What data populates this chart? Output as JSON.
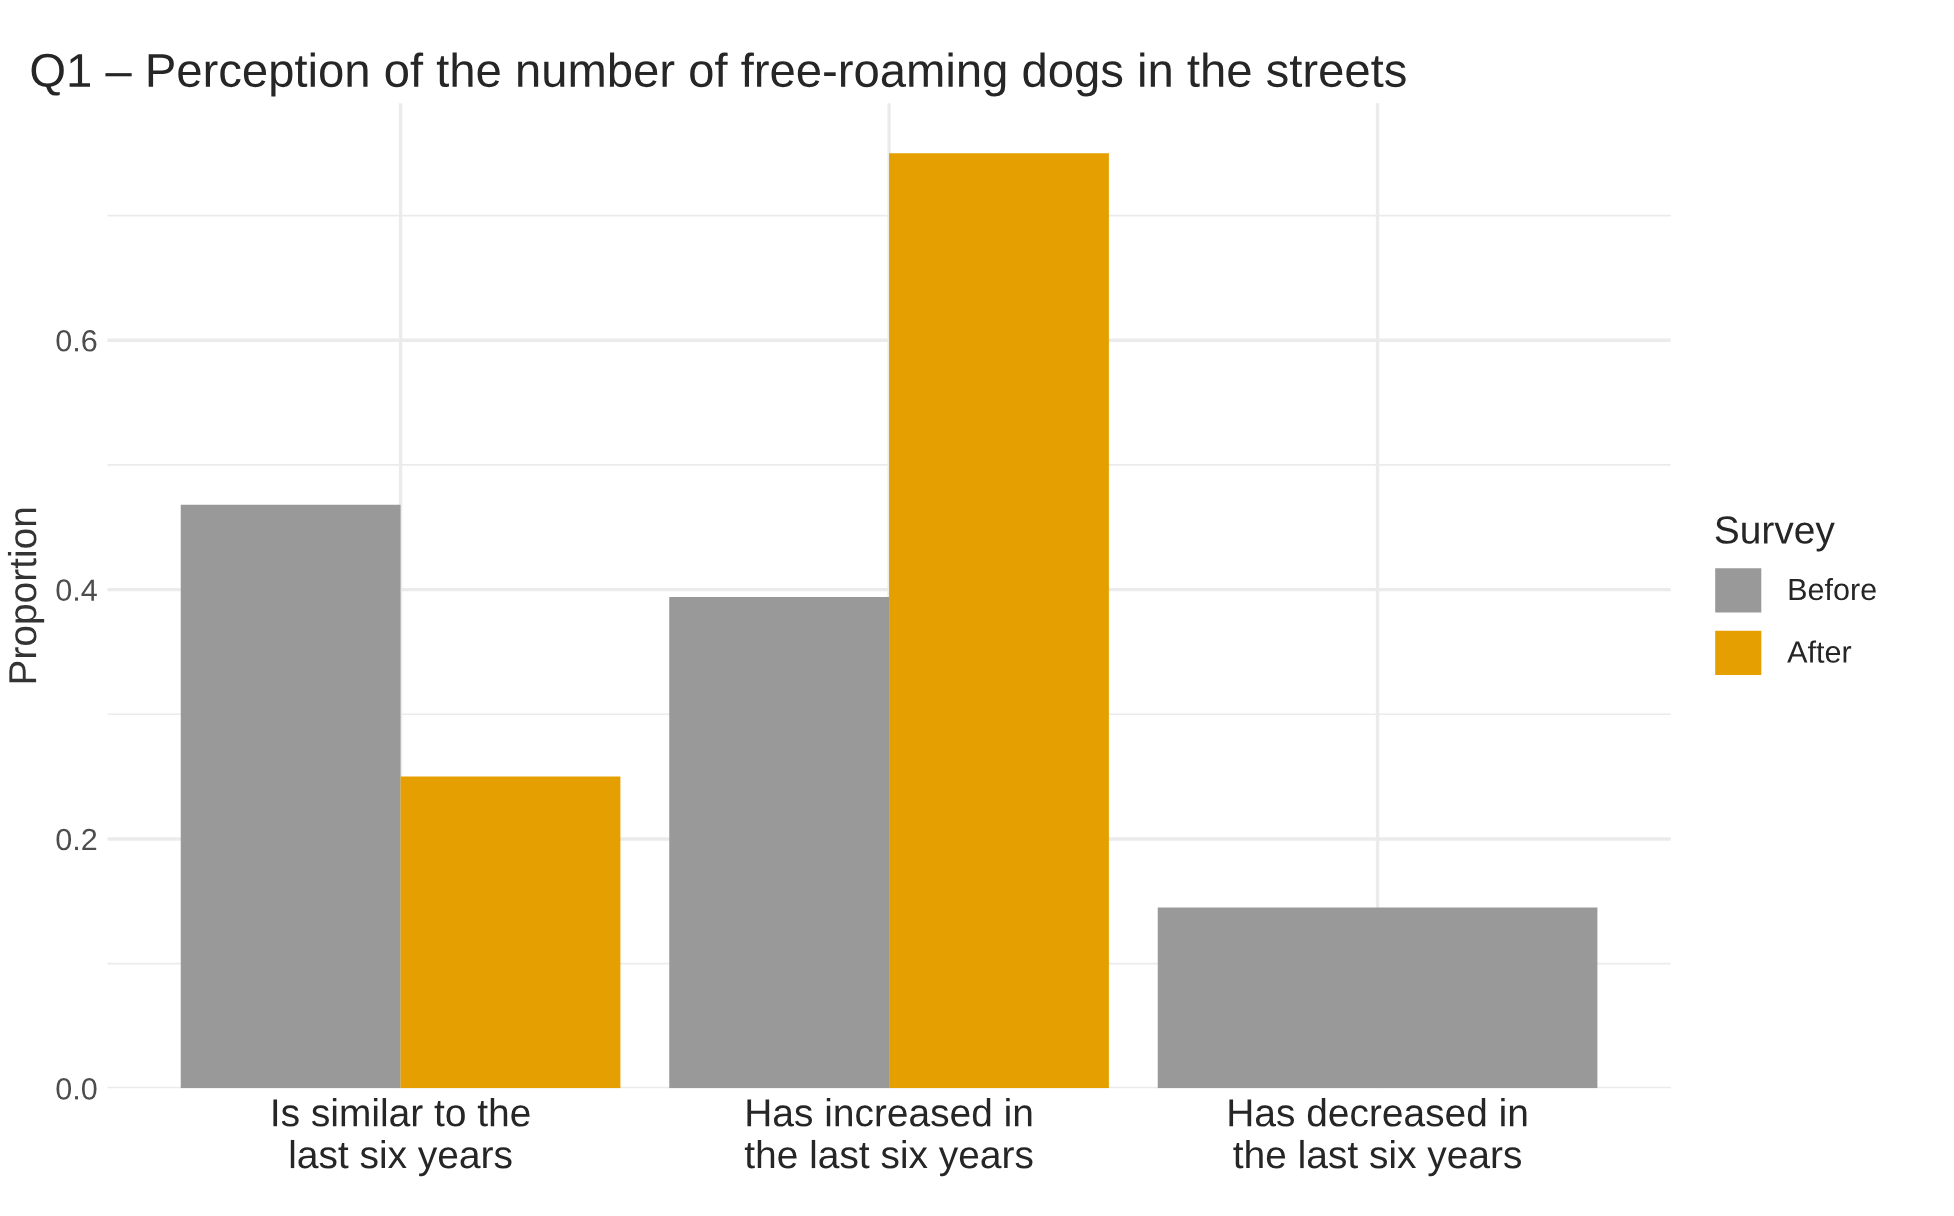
{
  "chart_data": {
    "type": "bar",
    "title": "Q1 – Perception of the number of free-roaming dogs in the streets",
    "ylabel": "Proportion",
    "categories": [
      "Is similar to the\nlast six years",
      "Has increased in\nthe last six years",
      "Has decreased in\nthe last six years"
    ],
    "series": [
      {
        "name": "Before",
        "color": "#999999",
        "values": [
          0.468,
          0.394,
          0.145
        ]
      },
      {
        "name": "After",
        "color": "#e69f00",
        "values": [
          0.25,
          0.75,
          null
        ]
      }
    ],
    "ylim": [
      0,
      0.79
    ],
    "yticks": [
      {
        "value": 0,
        "label": "0.0"
      },
      {
        "value": 0.1,
        "label": null
      },
      0.2,
      {
        "value": 0.3,
        "label": null
      },
      0.4,
      {
        "value": 0.5,
        "label": null
      },
      0.6,
      {
        "value": 0.7,
        "label": null
      }
    ],
    "legend_title": "Survey",
    "legend": "right",
    "grid": true
  }
}
